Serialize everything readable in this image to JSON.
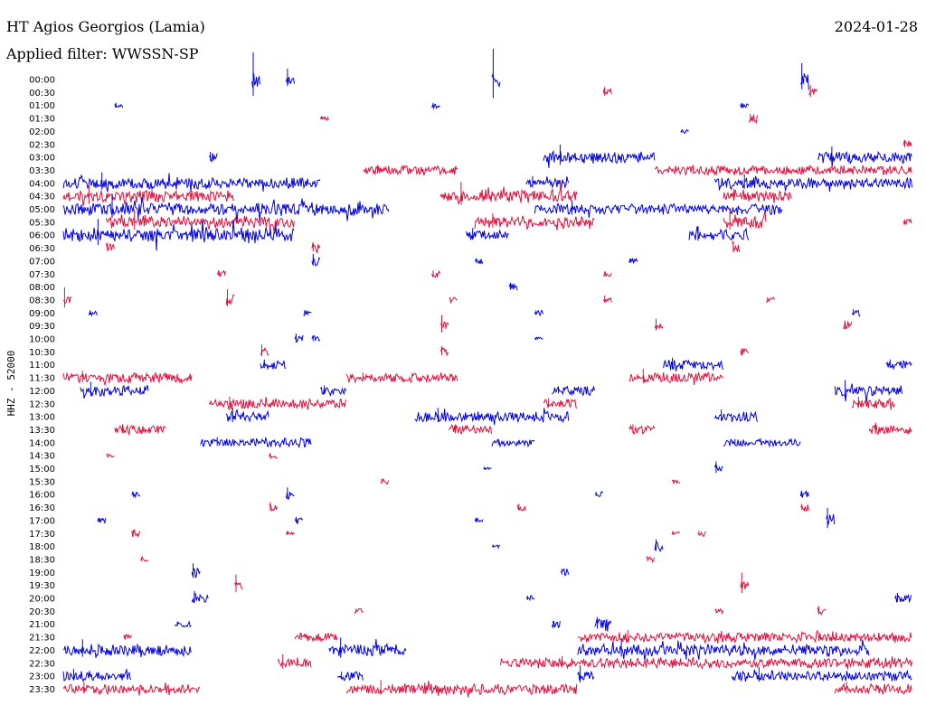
{
  "header": {
    "station": "HT Agios Georgios (Lamia)",
    "date": "2024-01-28",
    "filter_label": "Applied filter: WWSSN-SP"
  },
  "colors": {
    "odd_rows": "#0000e0",
    "even_rows": "#e0103c"
  },
  "chart_data": {
    "type": "line",
    "title": "HT Agios Georgios (Lamia)",
    "subtitle": "Applied filter: WWSSN-SP",
    "ylabel": "HHZ - 52000",
    "xlabel": "",
    "row_labels": [
      "00:00",
      "00:30",
      "01:00",
      "01:30",
      "02:00",
      "02:30",
      "03:00",
      "03:30",
      "04:00",
      "04:30",
      "05:00",
      "05:30",
      "06:00",
      "06:30",
      "07:00",
      "07:30",
      "08:00",
      "08:30",
      "09:00",
      "09:30",
      "10:00",
      "10:30",
      "11:00",
      "11:30",
      "12:00",
      "12:30",
      "13:00",
      "13:30",
      "14:00",
      "14:30",
      "15:00",
      "15:30",
      "16:00",
      "16:30",
      "17:00",
      "17:30",
      "18:00",
      "18:30",
      "19:00",
      "19:30",
      "20:00",
      "20:30",
      "21:00",
      "21:30",
      "22:00",
      "22:30",
      "23:00",
      "23:30"
    ],
    "grid": false,
    "legend": "none"
  }
}
